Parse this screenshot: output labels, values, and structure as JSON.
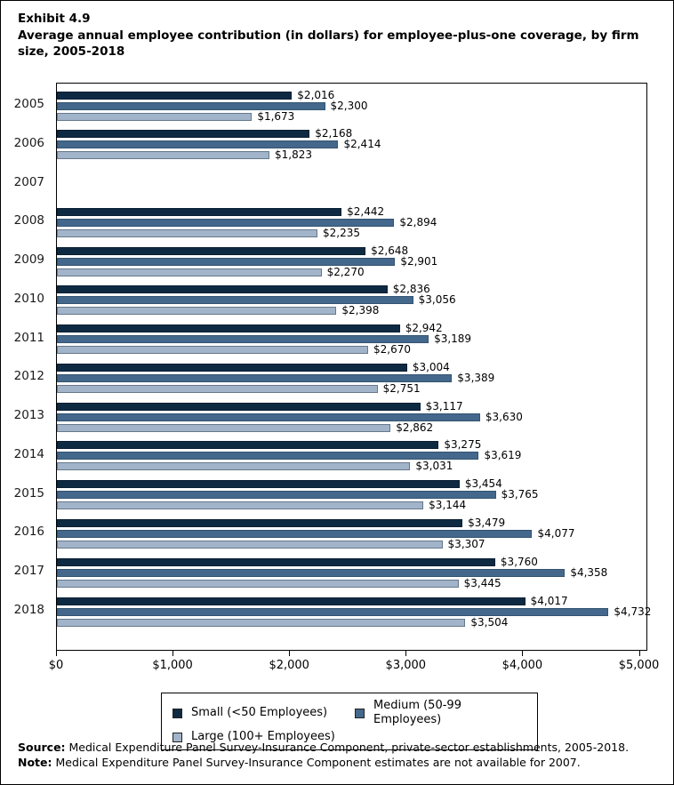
{
  "header": {
    "exhibit": "Exhibit 4.9",
    "title": "Average annual employee contribution (in dollars) for employee-plus-one coverage, by firm size, 2005-2018"
  },
  "chart_data": {
    "type": "bar",
    "orientation": "horizontal",
    "title": "Average annual employee contribution (in dollars) for employee-plus-one coverage, by firm size, 2005-2018",
    "categories": [
      "2005",
      "2006",
      "2007",
      "2008",
      "2009",
      "2010",
      "2011",
      "2012",
      "2013",
      "2014",
      "2015",
      "2016",
      "2017",
      "2018"
    ],
    "series": [
      {
        "name": "Small (<50 Employees)",
        "key": "small",
        "color": "#0E2A43",
        "border_color": "#0A1E31",
        "values": [
          2016,
          2168,
          null,
          2442,
          2648,
          2836,
          2942,
          3004,
          3117,
          3275,
          3454,
          3479,
          3760,
          4017
        ]
      },
      {
        "name": "Medium (50-99 Employees)",
        "key": "medium",
        "color": "#44688C",
        "border_color": "#33536F",
        "values": [
          2300,
          2414,
          null,
          2894,
          2901,
          3056,
          3189,
          3389,
          3630,
          3619,
          3765,
          4077,
          4358,
          4732
        ]
      },
      {
        "name": "Large (100+ Employees)",
        "key": "large",
        "color": "#A2B4C9",
        "border_color": "#66788A",
        "values": [
          1673,
          1823,
          null,
          2235,
          2270,
          2398,
          2670,
          2751,
          2862,
          3031,
          3144,
          3307,
          3445,
          3504
        ]
      }
    ],
    "x_ticks": {
      "values": [
        0,
        1000,
        2000,
        3000,
        4000,
        5000
      ],
      "labels": [
        "$0",
        "$1,000",
        "$2,000",
        "$3,000",
        "$4,000",
        "$5,000"
      ]
    },
    "xlim": [
      0,
      5000
    ],
    "value_label_prefix": "$",
    "grid": false,
    "legend_position": "bottom",
    "missing_years": [
      "2007"
    ]
  },
  "footnotes": {
    "source_label": "Source:",
    "source_text": " Medical Expenditure Panel Survey-Insurance Component, private-sector establishments, 2005-2018.",
    "note_label": "Note:",
    "note_text": " Medical Expenditure Panel Survey-Insurance Component estimates are not available for 2007."
  }
}
